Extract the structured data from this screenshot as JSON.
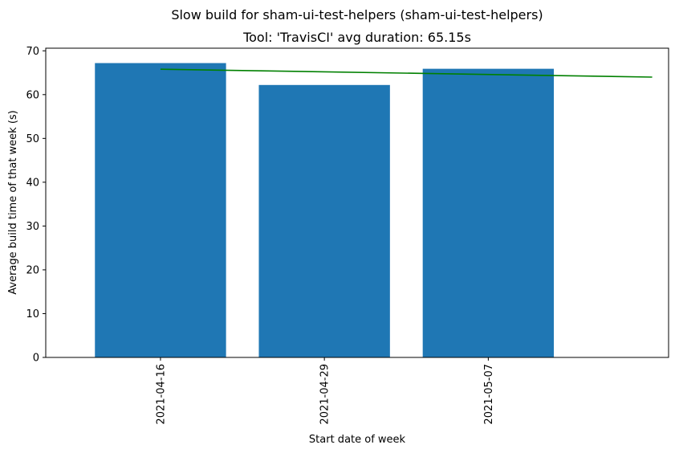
{
  "chart_data": {
    "type": "bar",
    "title": "Slow build for sham-ui-test-helpers (sham-ui-test-helpers)",
    "subtitle": "Tool: 'TravisCI' avg duration: 65.15s",
    "xlabel": "Start date of week",
    "ylabel": "Average build time of that week (s)",
    "categories": [
      "2021-04-16",
      "2021-04-29",
      "2021-05-07"
    ],
    "values": [
      67.2,
      62.2,
      65.9
    ],
    "bar_color": "#1f77b4",
    "trend_line": {
      "color": "#008000",
      "x_start": 0,
      "x_end": 3,
      "y_start": 65.8,
      "y_end": 64.0
    },
    "ylim": [
      0,
      70.6
    ],
    "yticks": [
      0,
      10,
      20,
      30,
      40,
      50,
      60,
      70
    ],
    "grid": false
  }
}
